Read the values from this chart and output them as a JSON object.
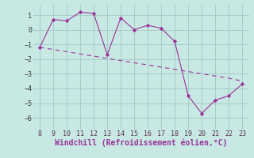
{
  "x": [
    8,
    9,
    10,
    11,
    12,
    13,
    14,
    15,
    16,
    17,
    18,
    19,
    20,
    21,
    22,
    23
  ],
  "y_main": [
    -1.2,
    0.7,
    0.6,
    1.2,
    1.1,
    -1.7,
    0.8,
    0.0,
    0.3,
    0.1,
    -0.8,
    -4.5,
    -5.7,
    -4.8,
    -4.5,
    -3.7
  ],
  "y_trend": [
    -1.2,
    -1.35,
    -1.5,
    -1.65,
    -1.8,
    -1.95,
    -2.1,
    -2.25,
    -2.4,
    -2.55,
    -2.7,
    -2.85,
    -3.0,
    -3.15,
    -3.3,
    -3.5
  ],
  "line_color": "#993399",
  "bg_color": "#c8e8e4",
  "grid_color": "#a8ccc8",
  "xlabel": "Windchill (Refroidissement éolien,°C)",
  "xlim": [
    7.5,
    23.5
  ],
  "ylim": [
    -6.8,
    1.7
  ],
  "xticks": [
    8,
    9,
    10,
    11,
    12,
    13,
    14,
    15,
    16,
    17,
    18,
    19,
    20,
    21,
    22,
    23
  ],
  "yticks": [
    1,
    0,
    -1,
    -2,
    -3,
    -4,
    -5,
    -6
  ],
  "xlabel_color": "#993399",
  "tick_fontsize": 6.0,
  "xlabel_fontsize": 7.0
}
